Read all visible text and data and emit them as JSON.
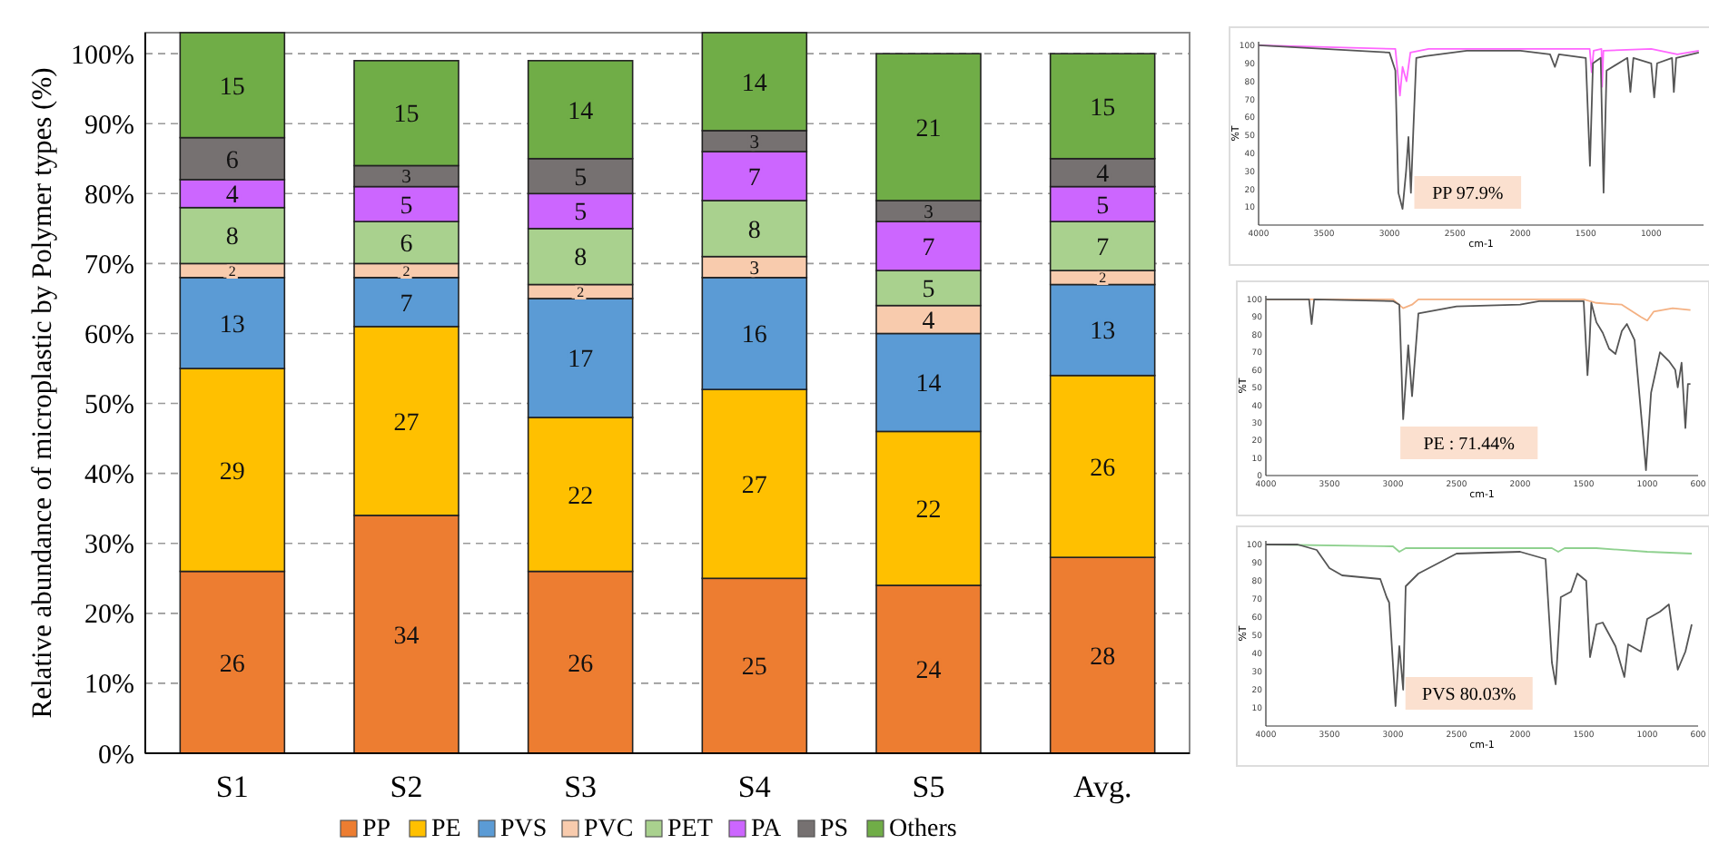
{
  "chart_data": [
    {
      "type": "bar",
      "stacked": true,
      "ylabel": "Relative abundance of microplastic by Polymer types (%)",
      "categories": [
        "S1",
        "S2",
        "S3",
        "S4",
        "S5",
        "Avg."
      ],
      "data_labels": true,
      "legend": "bottom",
      "grid": "y",
      "ylim": [
        0,
        103
      ],
      "yticks": [
        {
          "value": 0,
          "label": "0%"
        },
        {
          "value": 10,
          "label": "10%"
        },
        {
          "value": 20,
          "label": "20%"
        },
        {
          "value": 30,
          "label": "30%"
        },
        {
          "value": 40,
          "label": "40%"
        },
        {
          "value": 50,
          "label": "50%"
        },
        {
          "value": 60,
          "label": "60%"
        },
        {
          "value": 70,
          "label": "70%"
        },
        {
          "value": 80,
          "label": "80%"
        },
        {
          "value": 90,
          "label": "90%"
        },
        {
          "value": 100,
          "label": "100%"
        }
      ],
      "series": [
        {
          "name": "PP",
          "color": "#ed7d31",
          "values": [
            26,
            34,
            26,
            25,
            24,
            28
          ]
        },
        {
          "name": "PE",
          "color": "#ffc000",
          "values": [
            29,
            27,
            22,
            27,
            22,
            26
          ]
        },
        {
          "name": "PVS",
          "color": "#5b9bd5",
          "values": [
            13,
            7,
            17,
            16,
            14,
            13
          ]
        },
        {
          "name": "PVC",
          "color": "#f8cbad",
          "values": [
            2,
            2,
            2,
            3,
            4,
            2
          ]
        },
        {
          "name": "PET",
          "color": "#a9d18e",
          "values": [
            8,
            6,
            8,
            8,
            5,
            7
          ]
        },
        {
          "name": "PA",
          "color": "#cc66ff",
          "values": [
            4,
            5,
            5,
            7,
            7,
            5
          ]
        },
        {
          "name": "PS",
          "color": "#767171",
          "values": [
            6,
            3,
            5,
            3,
            3,
            4
          ]
        },
        {
          "name": "Others",
          "color": "#70ad47",
          "values": [
            15,
            15,
            14,
            14,
            21,
            15
          ]
        }
      ]
    },
    {
      "type": "line",
      "xlabel": "cm-1",
      "ylabel": "%T",
      "annotations": [
        "PP 97.9%"
      ],
      "marker": "none",
      "line_style": "solid",
      "xlim": [
        4000,
        600
      ],
      "ylim": [
        0,
        102
      ],
      "xticks": [
        4000,
        3500,
        3000,
        2500,
        2000,
        1500,
        1000
      ],
      "yticks": [
        10,
        20,
        30,
        40,
        50,
        60,
        70,
        80,
        90,
        100
      ],
      "series": [
        {
          "color": "#ff66ff",
          "x": [
            4000,
            2955,
            2920,
            2900,
            2870,
            2840,
            2700,
            2000,
            1470,
            1455,
            1440,
            1380,
            1375,
            1365,
            1000,
            800,
            636
          ],
          "values": [
            100,
            98,
            72,
            88,
            80,
            96,
            98,
            98,
            98,
            85,
            97,
            98,
            77,
            97,
            98,
            95,
            97
          ]
        },
        {
          "color": "#555555",
          "x": [
            4000,
            3000,
            2955,
            2932,
            2900,
            2873,
            2855,
            2836,
            2818,
            2795,
            2727,
            2409,
            2000,
            1773,
            1736,
            1705,
            1500,
            1468,
            1445,
            1386,
            1364,
            1341,
            1182,
            1159,
            1136,
            1000,
            977,
            955,
            841,
            827,
            809,
            636
          ],
          "values": [
            100,
            96,
            86,
            18,
            9,
            30,
            49,
            18,
            52,
            93,
            94,
            97,
            97,
            95,
            88,
            95,
            93,
            33,
            90,
            93,
            18,
            86,
            93,
            74,
            93,
            90,
            71,
            90,
            93,
            74,
            93,
            96
          ]
        }
      ]
    },
    {
      "type": "line",
      "xlabel": "cm-1",
      "ylabel": "%T",
      "annotations": [
        "PE : 71.44%"
      ],
      "marker": "none",
      "line_style": "solid",
      "xlim": [
        4000,
        600
      ],
      "ylim": [
        0,
        102
      ],
      "xticks": [
        4000,
        3500,
        3000,
        2500,
        2000,
        1500,
        1000,
        600
      ],
      "yticks": [
        0,
        10,
        20,
        30,
        40,
        50,
        60,
        70,
        80,
        90,
        100
      ],
      "series": [
        {
          "color": "#f4b183",
          "x": [
            4000,
            3000,
            2920,
            2850,
            2800,
            1850,
            1500,
            1400,
            1200,
            1050,
            1000,
            950,
            800,
            660
          ],
          "values": [
            100,
            100,
            95,
            97,
            100,
            100,
            100,
            98,
            97,
            90,
            88,
            93,
            95,
            94
          ]
        },
        {
          "color": "#555555",
          "x": [
            4000,
            3660,
            3640,
            3620,
            3000,
            2950,
            2920,
            2880,
            2850,
            2800,
            2500,
            2000,
            1850,
            1500,
            1470,
            1455,
            1440,
            1400,
            1350,
            1300,
            1250,
            1200,
            1160,
            1100,
            1030,
            1010,
            970,
            900,
            830,
            780,
            760,
            730,
            700,
            680,
            660
          ],
          "values": [
            100,
            100,
            86,
            100,
            99,
            97,
            32,
            74,
            45,
            92,
            96,
            97,
            99,
            99,
            57,
            74,
            98,
            87,
            81,
            72,
            69,
            82,
            86,
            77,
            20,
            3,
            47,
            70,
            65,
            60,
            50,
            64,
            27,
            52,
            52
          ]
        }
      ]
    },
    {
      "type": "line",
      "xlabel": "cm-1",
      "ylabel": "%T",
      "annotations": [
        "PVS 80.03%"
      ],
      "marker": "none",
      "line_style": "solid",
      "xlim": [
        4000,
        600
      ],
      "ylim": [
        0,
        102
      ],
      "xticks": [
        4000,
        3500,
        3000,
        2500,
        2000,
        1500,
        1000,
        600
      ],
      "yticks": [
        10,
        20,
        30,
        40,
        50,
        60,
        70,
        80,
        90,
        100
      ],
      "series": [
        {
          "color": "#8fd18f",
          "x": [
            4000,
            3000,
            2950,
            2900,
            1750,
            1700,
            1650,
            1400,
            1000,
            650
          ],
          "values": [
            100,
            99,
            96,
            98,
            98,
            96,
            98,
            98,
            96,
            95
          ]
        },
        {
          "color": "#555555",
          "x": [
            4000,
            3750,
            3600,
            3500,
            3400,
            3100,
            3050,
            3030,
            2980,
            2950,
            2920,
            2900,
            2800,
            2500,
            2000,
            1800,
            1750,
            1720,
            1680,
            1600,
            1550,
            1480,
            1450,
            1400,
            1350,
            1250,
            1180,
            1150,
            1050,
            1000,
            900,
            830,
            760,
            700,
            650
          ],
          "values": [
            100,
            100,
            97,
            87,
            83,
            81,
            71,
            68,
            11,
            44,
            20,
            77,
            84,
            95,
            96,
            92,
            35,
            23,
            71,
            74,
            84,
            80,
            38,
            56,
            57,
            44,
            27,
            45,
            41,
            59,
            63,
            67,
            31,
            41,
            56
          ]
        }
      ]
    }
  ]
}
